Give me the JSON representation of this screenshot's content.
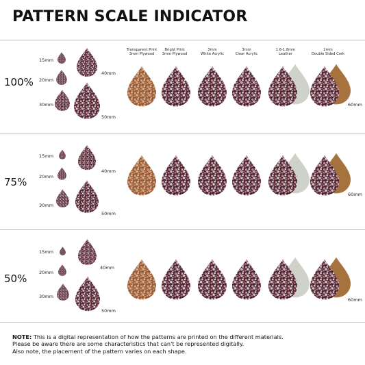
{
  "title": "PATTERN SCALE INDICATOR",
  "colors": {
    "floral_bg": "#4a2630",
    "flower_pink": "#d8a9b6",
    "flower_white": "#ece4ea",
    "wood": "#9a5a33",
    "wood_flower": "#d7b596",
    "leather_back": "#cfd2c8",
    "cork_back": "#a6733f",
    "divider": "#bdbdbd"
  },
  "materials": [
    {
      "line1": "Transparent Print",
      "line2": "3mm Plywood"
    },
    {
      "line1": "Bright Print",
      "line2": "3mm Plywood"
    },
    {
      "line1": "3mm",
      "line2": "White Acrylic"
    },
    {
      "line1": "3mm",
      "line2": "Clear Acrylic"
    },
    {
      "line1": "1.6-1.8mm",
      "line2": "Leather"
    },
    {
      "line1": "2mm",
      "line2": "Double Sided Cork"
    }
  ],
  "rows": [
    {
      "scale": "100%",
      "sizes": [
        "15mm",
        "20mm",
        "30mm",
        "40mm",
        "50mm"
      ],
      "sample_size": "60mm"
    },
    {
      "scale": "75%",
      "sizes": [
        "15mm",
        "20mm",
        "30mm",
        "40mm",
        "50mm"
      ],
      "sample_size": "60mm"
    },
    {
      "scale": "50%",
      "sizes": [
        "15mm",
        "20mm",
        "30mm",
        "40mm",
        "50mm"
      ],
      "sample_size": "60mm"
    }
  ],
  "note": {
    "label": "NOTE:",
    "line1": " This is a digital representation of how the patterns are printed on the different materials.",
    "line2": "Please be aware there are some characteristics that can't be represented digitally.",
    "line3": "Also note, the placement of the pattern varies on each shape."
  }
}
